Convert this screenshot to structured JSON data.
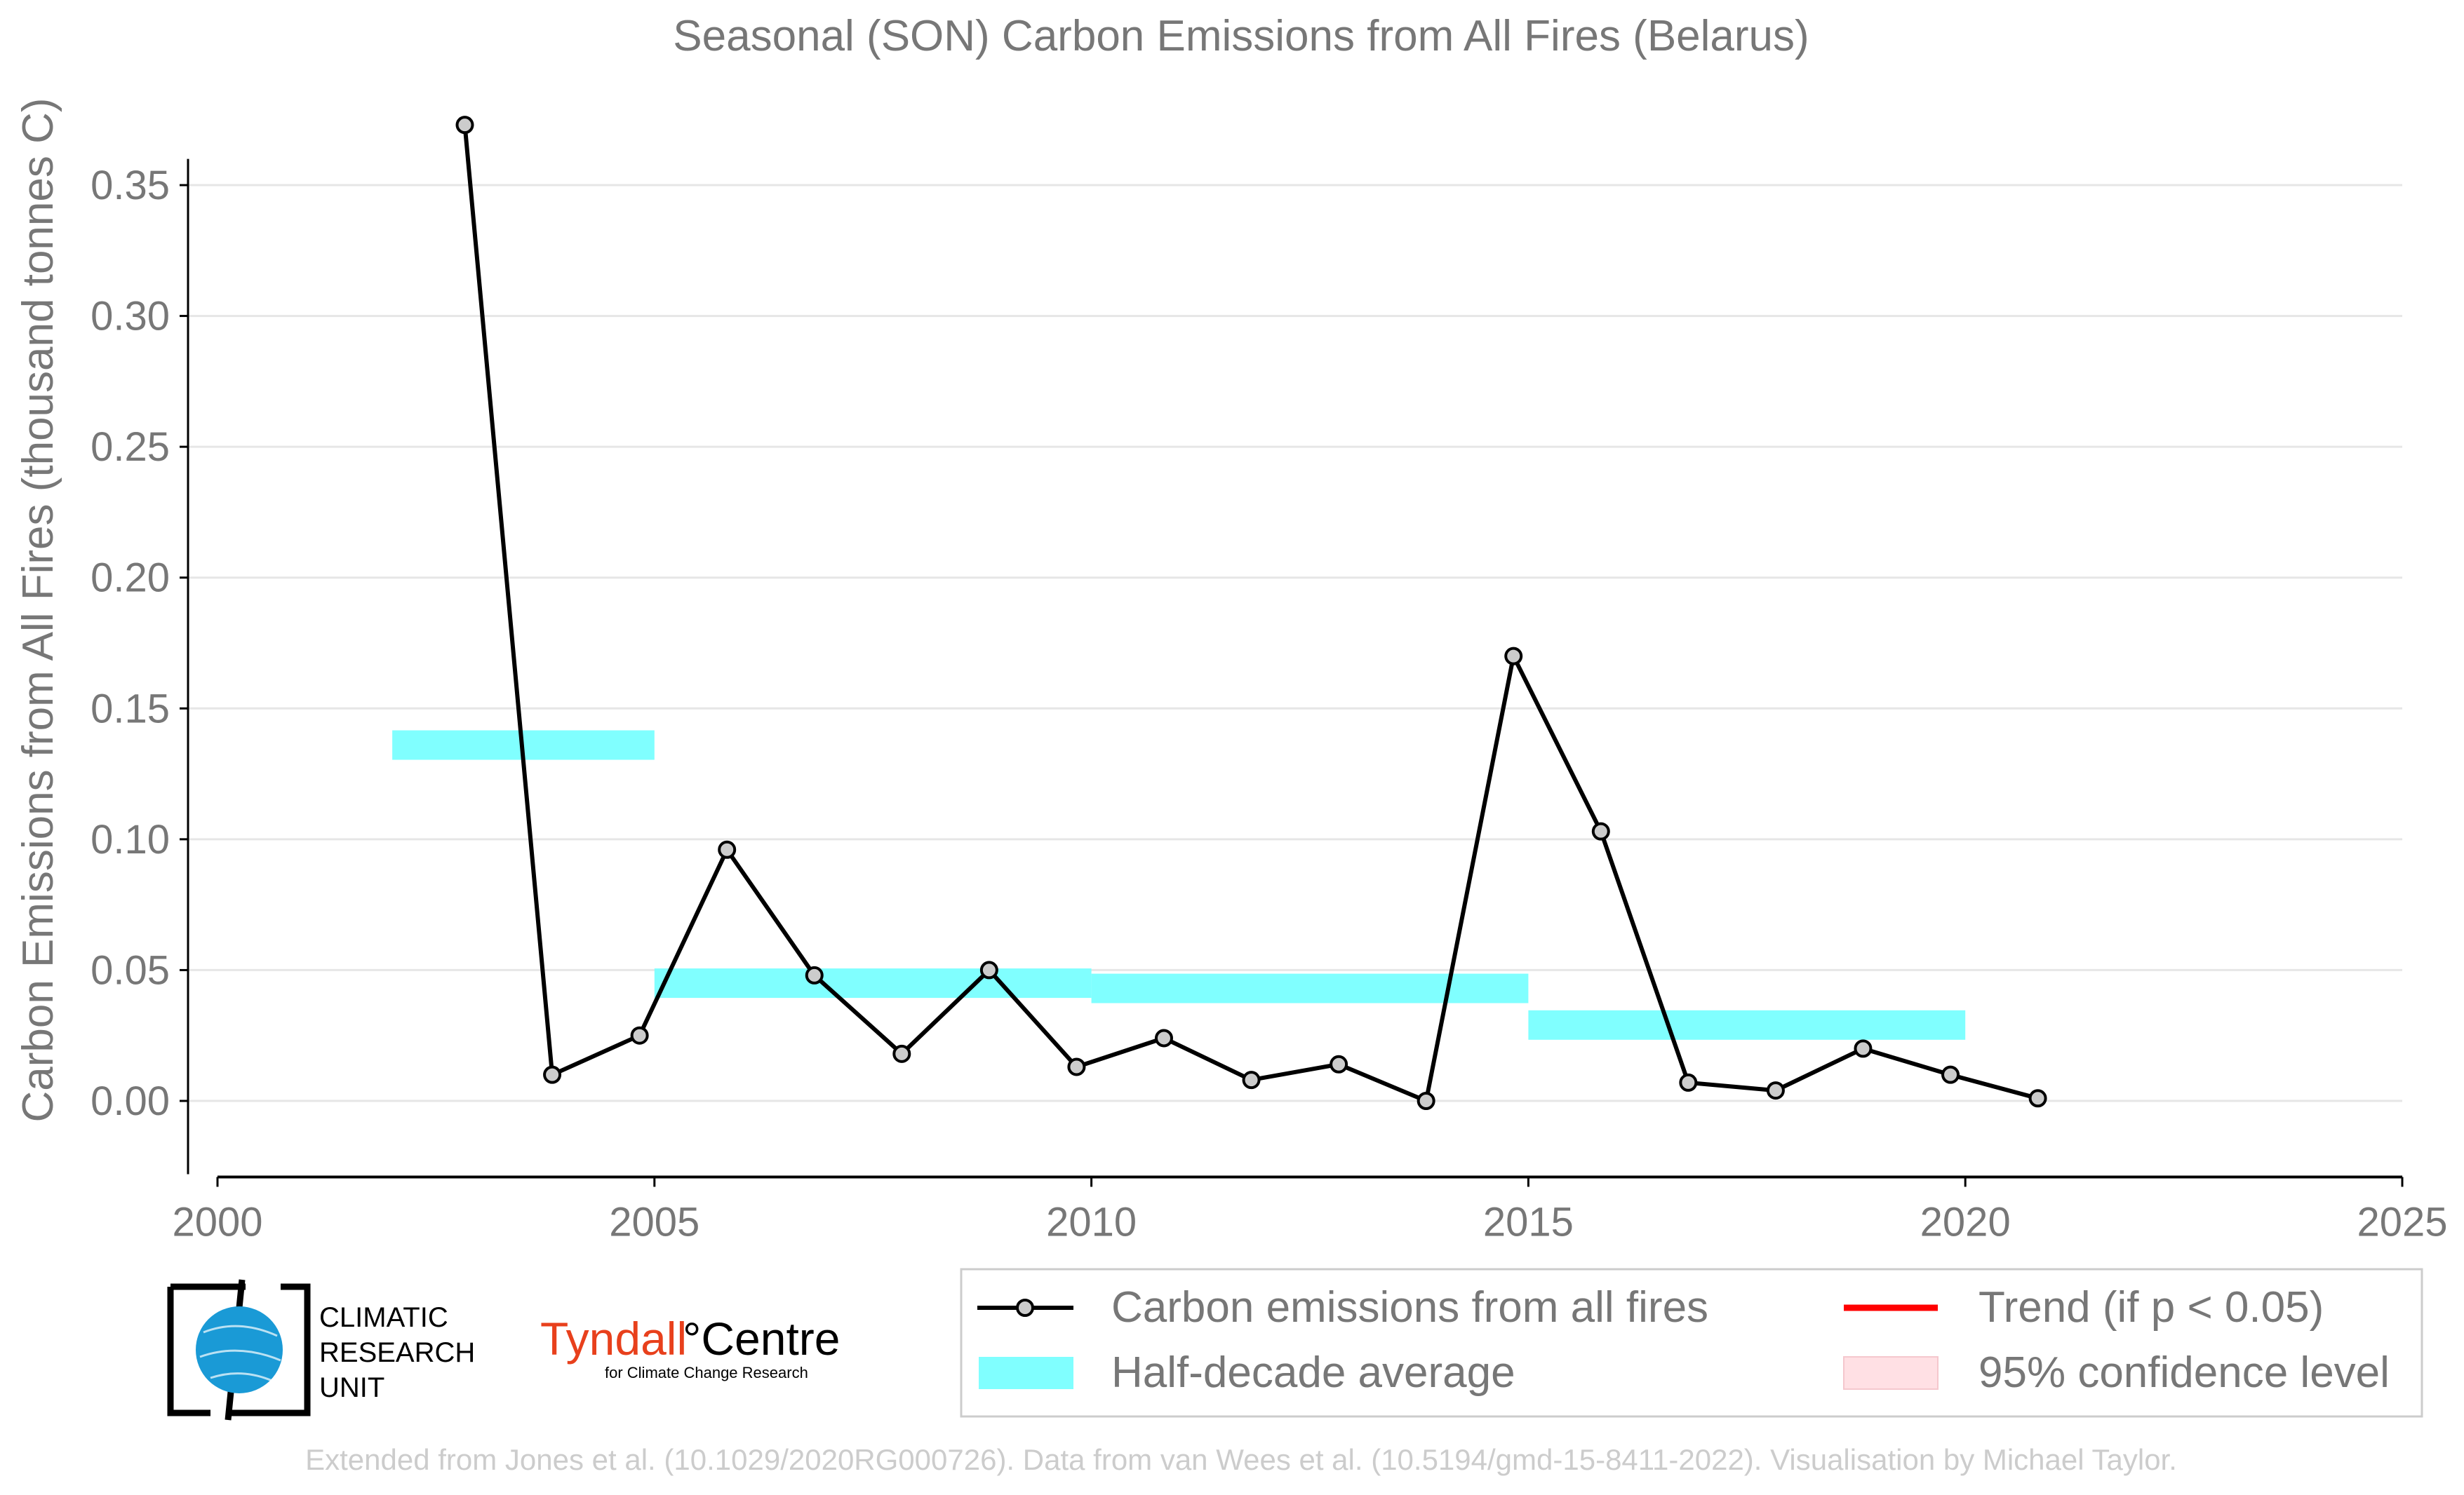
{
  "chart_data": {
    "type": "line",
    "title": "Seasonal (SON) Carbon Emissions from All Fires (Belarus)",
    "ylabel": "Carbon Emissions from All Fires (thousand tonnes C)",
    "xlabel": "",
    "xlim": [
      2000,
      2025
    ],
    "ylim": [
      -0.028,
      0.36
    ],
    "xticks": [
      2000,
      2005,
      2010,
      2015,
      2020,
      2025
    ],
    "yticks": [
      0.0,
      0.05,
      0.1,
      0.15,
      0.2,
      0.25,
      0.3,
      0.35
    ],
    "ytick_labels": [
      "0.00",
      "0.05",
      "0.10",
      "0.15",
      "0.20",
      "0.25",
      "0.30",
      "0.35"
    ],
    "grid": "horizontal",
    "series": [
      {
        "name": "Carbon emissions from all fires",
        "color": "#000000",
        "marker_fill": "#cccccc",
        "x": [
          2002.83,
          2003.83,
          2004.83,
          2005.83,
          2006.83,
          2007.83,
          2008.83,
          2009.83,
          2010.83,
          2011.83,
          2012.83,
          2013.83,
          2014.83,
          2015.83,
          2016.83,
          2017.83,
          2018.83,
          2019.83,
          2020.83
        ],
        "values": [
          0.373,
          0.01,
          0.025,
          0.096,
          0.048,
          0.018,
          0.05,
          0.013,
          0.024,
          0.008,
          0.014,
          0.0,
          0.17,
          0.103,
          0.007,
          0.004,
          0.02,
          0.01,
          0.001
        ]
      }
    ],
    "half_decade_average": {
      "name": "Half-decade average",
      "color": "#80ffff",
      "segments": [
        {
          "x0": 2002,
          "x1": 2005,
          "value": 0.136
        },
        {
          "x0": 2005,
          "x1": 2010,
          "value": 0.045
        },
        {
          "x0": 2010,
          "x1": 2015,
          "value": 0.043
        },
        {
          "x0": 2015,
          "x1": 2020,
          "value": 0.029
        }
      ]
    },
    "legend": {
      "placement": "bottom-right",
      "entries": [
        {
          "label": "Carbon emissions from all fires",
          "kind": "line-marker",
          "color": "#000000"
        },
        {
          "label": "Trend (if p < 0.05)",
          "kind": "line",
          "color": "#ff0000"
        },
        {
          "label": "Half-decade average",
          "kind": "patch",
          "color": "#80ffff"
        },
        {
          "label": "95% confidence level",
          "kind": "patch",
          "color": "#ffe0e4"
        }
      ]
    }
  },
  "logos": {
    "cru": {
      "line1": "CLIMATIC",
      "line2": "RESEARCH",
      "line3": "UNIT",
      "globe_color": "#1a9ad6"
    },
    "tyndall": {
      "name_part1": "Tyndall",
      "name_part2": "°Centre",
      "tagline": "for Climate Change Research",
      "accent_color": "#e8401c"
    }
  },
  "footer": {
    "credit": "Extended from Jones et al. (10.1029/2020RG000726). Data from van Wees et al. (10.5194/gmd-15-8411-2022). Visualisation by Michael Taylor."
  }
}
